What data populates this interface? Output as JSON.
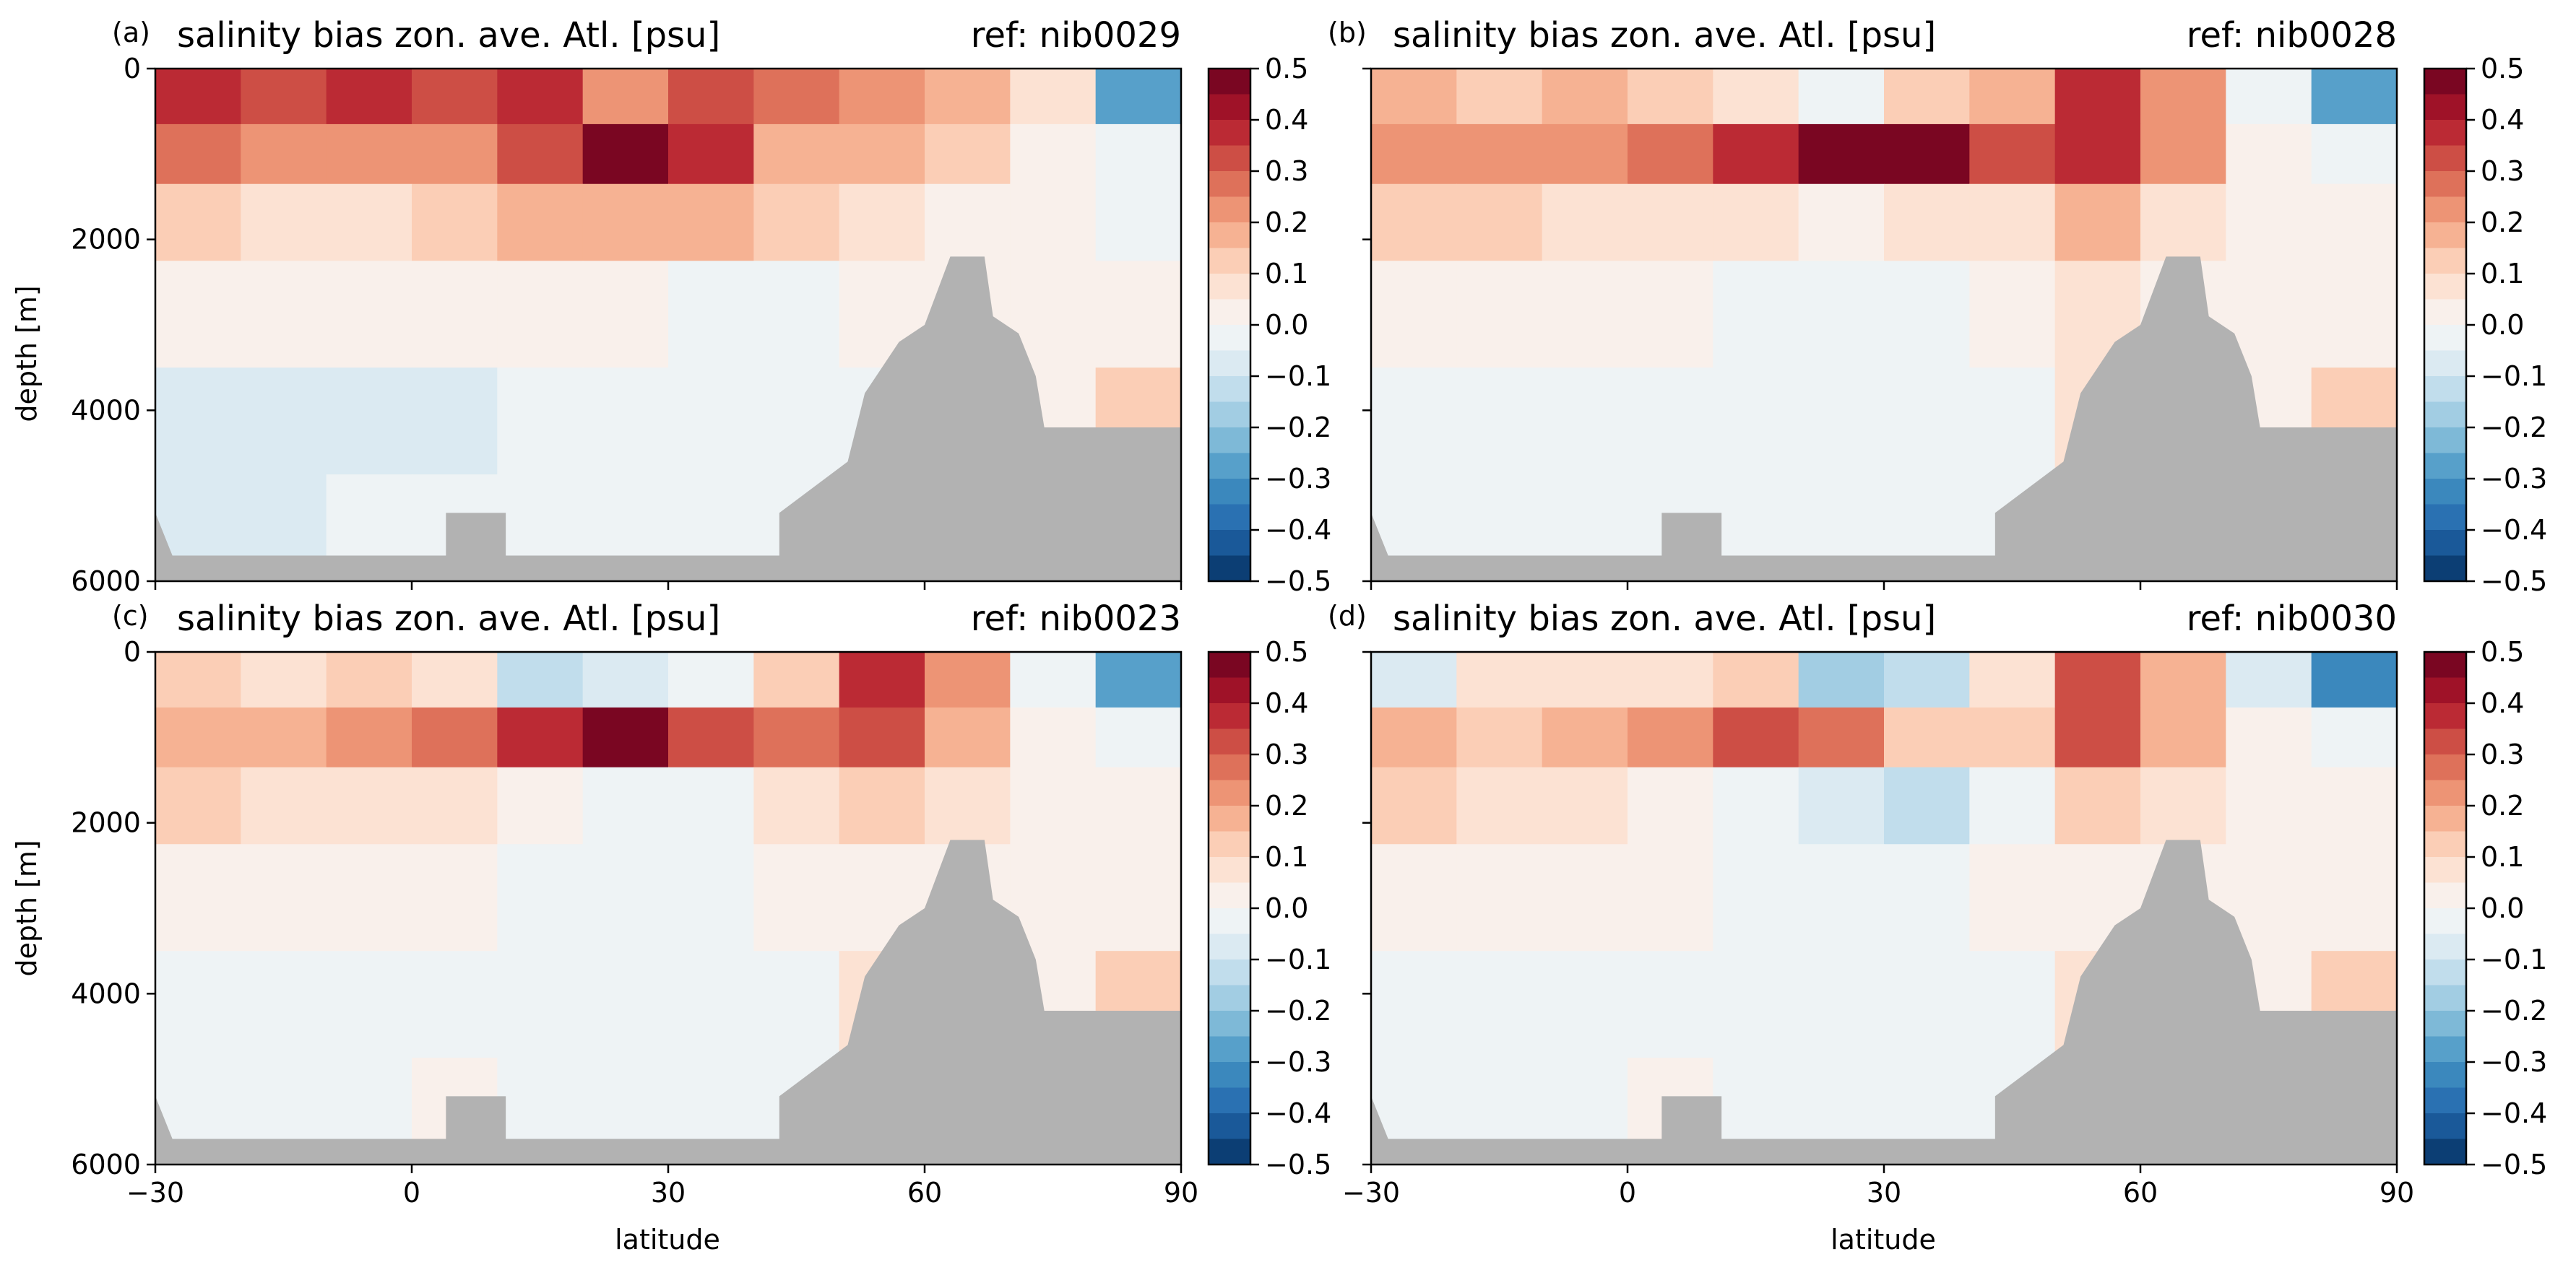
{
  "chart_data": [
    {
      "type": "heatmap",
      "panel_label": "(a)",
      "title": "salinity bias zon. ave. Atl. [psu]",
      "reference": "ref: nib0029",
      "xlabel": "",
      "ylabel": "depth [m]",
      "x_ticks": [
        "-30",
        "0",
        "30",
        "60",
        "90"
      ],
      "y_ticks": [
        "0",
        "2000",
        "4000",
        "6000"
      ],
      "xlim": [
        -30,
        90
      ],
      "ylim": [
        6000,
        0
      ],
      "rows": [
        {
          "depth": 300,
          "values": [
            0.35,
            0.3,
            0.35,
            0.3,
            0.35,
            0.2,
            0.3,
            0.25,
            0.2,
            0.15,
            0.05,
            -0.3
          ]
        },
        {
          "depth": 1000,
          "values": [
            0.25,
            0.2,
            0.2,
            0.2,
            0.3,
            0.5,
            0.35,
            0.15,
            0.15,
            0.1,
            0.0,
            -0.05
          ]
        },
        {
          "depth": 1700,
          "values": [
            0.1,
            0.05,
            0.05,
            0.1,
            0.15,
            0.15,
            0.15,
            0.1,
            0.05,
            0.0,
            0.0,
            -0.02
          ]
        },
        {
          "depth": 2800,
          "values": [
            0.03,
            0.0,
            0.0,
            0.0,
            0.0,
            0.0,
            -0.02,
            -0.02,
            0.0,
            0.0,
            0.0,
            0.0
          ]
        },
        {
          "depth": 4200,
          "values": [
            -0.1,
            -0.08,
            -0.1,
            -0.1,
            -0.05,
            -0.05,
            -0.05,
            -0.05,
            -0.05,
            0.0,
            0.0,
            0.1
          ]
        },
        {
          "depth": 5300,
          "values": [
            -0.1,
            -0.08,
            -0.05,
            -0.05,
            -0.05,
            -0.05,
            -0.05,
            -0.05,
            -0.05,
            0.0,
            0.0,
            0.0
          ]
        }
      ],
      "colorbar": {
        "ticks": [
          "0.5",
          "0.4",
          "0.3",
          "0.2",
          "0.1",
          "0.0",
          "−0.1",
          "−0.2",
          "−0.3",
          "−0.4",
          "−0.5"
        ],
        "range": [
          -0.5,
          0.5
        ],
        "levels": 20
      }
    },
    {
      "type": "heatmap",
      "panel_label": "(b)",
      "title": "salinity bias zon. ave. Atl. [psu]",
      "reference": "ref: nib0028",
      "xlabel": "",
      "ylabel": "",
      "x_ticks": [
        "-30",
        "0",
        "30",
        "60",
        "90"
      ],
      "y_ticks": [],
      "xlim": [
        -30,
        90
      ],
      "ylim": [
        6000,
        0
      ],
      "rows": [
        {
          "depth": 300,
          "values": [
            0.15,
            0.1,
            0.15,
            0.1,
            0.05,
            -0.05,
            0.1,
            0.15,
            0.35,
            0.2,
            -0.05,
            -0.3
          ]
        },
        {
          "depth": 1000,
          "values": [
            0.2,
            0.2,
            0.2,
            0.25,
            0.35,
            0.5,
            0.45,
            0.3,
            0.35,
            0.2,
            0.0,
            -0.05
          ]
        },
        {
          "depth": 1700,
          "values": [
            0.1,
            0.1,
            0.05,
            0.05,
            0.05,
            0.0,
            0.05,
            0.05,
            0.15,
            0.05,
            0.0,
            0.0
          ]
        },
        {
          "depth": 2800,
          "values": [
            0.03,
            0.0,
            0.0,
            0.0,
            -0.05,
            -0.05,
            -0.05,
            0.0,
            0.05,
            0.0,
            0.0,
            0.0
          ]
        },
        {
          "depth": 4200,
          "values": [
            -0.05,
            -0.05,
            -0.05,
            -0.05,
            -0.05,
            -0.05,
            -0.05,
            -0.05,
            0.05,
            0.0,
            0.0,
            0.1
          ]
        },
        {
          "depth": 5300,
          "values": [
            -0.05,
            -0.05,
            -0.05,
            -0.05,
            -0.05,
            -0.05,
            -0.05,
            -0.05,
            -0.05,
            0.0,
            0.0,
            0.0
          ]
        }
      ],
      "colorbar": {
        "ticks": [
          "0.5",
          "0.4",
          "0.3",
          "0.2",
          "0.1",
          "0.0",
          "−0.1",
          "−0.2",
          "−0.3",
          "−0.4",
          "−0.5"
        ],
        "range": [
          -0.5,
          0.5
        ],
        "levels": 20
      }
    },
    {
      "type": "heatmap",
      "panel_label": "(c)",
      "title": "salinity bias zon. ave. Atl. [psu]",
      "reference": "ref: nib0023",
      "xlabel": "latitude",
      "ylabel": "depth [m]",
      "x_ticks": [
        "−30",
        "0",
        "30",
        "60",
        "90"
      ],
      "y_ticks": [
        "0",
        "2000",
        "4000",
        "6000"
      ],
      "xlim": [
        -30,
        90
      ],
      "ylim": [
        6000,
        0
      ],
      "rows": [
        {
          "depth": 300,
          "values": [
            0.1,
            0.05,
            0.1,
            0.05,
            -0.15,
            -0.1,
            -0.05,
            0.1,
            0.35,
            0.2,
            -0.05,
            -0.3
          ]
        },
        {
          "depth": 1000,
          "values": [
            0.15,
            0.15,
            0.2,
            0.25,
            0.35,
            0.45,
            0.3,
            0.25,
            0.3,
            0.15,
            0.0,
            -0.05
          ]
        },
        {
          "depth": 1700,
          "values": [
            0.1,
            0.05,
            0.05,
            0.05,
            0.0,
            -0.05,
            -0.05,
            0.05,
            0.1,
            0.05,
            0.0,
            0.0
          ]
        },
        {
          "depth": 2800,
          "values": [
            0.02,
            0.0,
            0.0,
            0.0,
            -0.02,
            -0.05,
            -0.02,
            0.0,
            0.0,
            0.0,
            0.0,
            0.0
          ]
        },
        {
          "depth": 4200,
          "values": [
            -0.05,
            -0.05,
            -0.05,
            -0.05,
            -0.05,
            -0.05,
            -0.05,
            -0.05,
            0.05,
            0.0,
            0.0,
            0.1
          ]
        },
        {
          "depth": 5300,
          "values": [
            -0.05,
            -0.05,
            -0.05,
            0.02,
            -0.05,
            -0.05,
            -0.05,
            -0.05,
            0.0,
            0.0,
            0.0,
            0.0
          ]
        }
      ],
      "colorbar": {
        "ticks": [
          "0.5",
          "0.4",
          "0.3",
          "0.2",
          "0.1",
          "0.0",
          "−0.1",
          "−0.2",
          "−0.3",
          "−0.4",
          "−0.5"
        ],
        "range": [
          -0.5,
          0.5
        ],
        "levels": 20
      }
    },
    {
      "type": "heatmap",
      "panel_label": "(d)",
      "title": "salinity bias zon. ave. Atl. [psu]",
      "reference": "ref: nib0030",
      "xlabel": "latitude",
      "ylabel": "",
      "x_ticks": [
        "−30",
        "0",
        "30",
        "60",
        "90"
      ],
      "y_ticks": [],
      "xlim": [
        -30,
        90
      ],
      "ylim": [
        6000,
        0
      ],
      "rows": [
        {
          "depth": 300,
          "values": [
            -0.1,
            0.05,
            0.05,
            0.05,
            0.1,
            -0.2,
            -0.15,
            0.05,
            0.3,
            0.15,
            -0.1,
            -0.35
          ]
        },
        {
          "depth": 1000,
          "values": [
            0.15,
            0.1,
            0.15,
            0.2,
            0.3,
            0.25,
            0.1,
            0.1,
            0.3,
            0.15,
            0.0,
            -0.05
          ]
        },
        {
          "depth": 1700,
          "values": [
            0.1,
            0.05,
            0.05,
            0.0,
            -0.05,
            -0.1,
            -0.15,
            -0.05,
            0.1,
            0.05,
            0.0,
            0.0
          ]
        },
        {
          "depth": 2800,
          "values": [
            0.02,
            0.0,
            0.0,
            0.0,
            -0.02,
            -0.05,
            -0.05,
            0.0,
            0.0,
            0.0,
            0.0,
            0.0
          ]
        },
        {
          "depth": 4200,
          "values": [
            -0.05,
            -0.05,
            -0.05,
            -0.05,
            -0.05,
            -0.05,
            -0.05,
            -0.05,
            0.05,
            0.0,
            0.0,
            0.1
          ]
        },
        {
          "depth": 5300,
          "values": [
            -0.05,
            -0.05,
            -0.05,
            0.02,
            -0.05,
            -0.05,
            -0.05,
            -0.05,
            0.0,
            0.0,
            0.0,
            0.0
          ]
        }
      ],
      "colorbar": {
        "ticks": [
          "0.5",
          "0.4",
          "0.3",
          "0.2",
          "0.1",
          "0.0",
          "−0.1",
          "−0.2",
          "−0.3",
          "−0.4",
          "−0.5"
        ],
        "range": [
          -0.5,
          0.5
        ],
        "levels": 20
      }
    }
  ],
  "topography": {
    "color": "#b2b2b2",
    "profile": [
      {
        "lat": -30,
        "depth": 5200
      },
      {
        "lat": -28,
        "depth": 5700
      },
      {
        "lat": 4,
        "depth": 5700
      },
      {
        "lat": 4,
        "depth": 5200
      },
      {
        "lat": 11,
        "depth": 5200
      },
      {
        "lat": 11,
        "depth": 5700
      },
      {
        "lat": 43,
        "depth": 5700
      },
      {
        "lat": 43,
        "depth": 5200
      },
      {
        "lat": 51,
        "depth": 4600
      },
      {
        "lat": 53,
        "depth": 3800
      },
      {
        "lat": 57,
        "depth": 3200
      },
      {
        "lat": 60,
        "depth": 3000
      },
      {
        "lat": 63,
        "depth": 2200
      },
      {
        "lat": 67,
        "depth": 2200
      },
      {
        "lat": 68,
        "depth": 2900
      },
      {
        "lat": 71,
        "depth": 3100
      },
      {
        "lat": 73,
        "depth": 3600
      },
      {
        "lat": 74,
        "depth": 4200
      },
      {
        "lat": 80,
        "depth": 4200
      },
      {
        "lat": 90,
        "depth": 4200
      }
    ]
  },
  "colors": {
    "diverging_scale": [
      "#67001f",
      "#b2182b",
      "#d6604d",
      "#f4a582",
      "#fddbc7",
      "#f7f7f7",
      "#d1e5f0",
      "#92c5de",
      "#4393c3",
      "#2166ac",
      "#053061"
    ],
    "axis": "#000000",
    "background": "#ffffff"
  }
}
